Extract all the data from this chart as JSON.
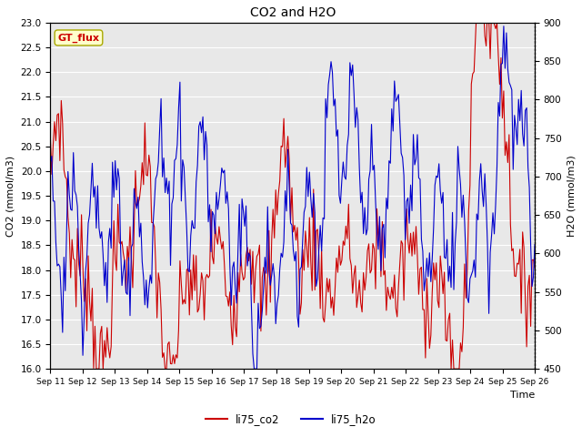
{
  "title": "CO2 and H2O",
  "xlabel": "Time",
  "ylabel_left": "CO2 (mmol/m3)",
  "ylabel_right": "H2O (mmol/m3)",
  "ylim_left": [
    16.0,
    23.0
  ],
  "ylim_right": [
    450,
    900
  ],
  "yticks_left": [
    16.0,
    16.5,
    17.0,
    17.5,
    18.0,
    18.5,
    19.0,
    19.5,
    20.0,
    20.5,
    21.0,
    21.5,
    22.0,
    22.5,
    23.0
  ],
  "yticks_right": [
    450,
    500,
    550,
    600,
    650,
    700,
    750,
    800,
    850,
    900
  ],
  "xtick_labels": [
    "Sep 11",
    "Sep 12",
    "Sep 13",
    "Sep 14",
    "Sep 15",
    "Sep 16",
    "Sep 17",
    "Sep 18",
    "Sep 19",
    "Sep 20",
    "Sep 21",
    "Sep 22",
    "Sep 23",
    "Sep 24",
    "Sep 25",
    "Sep 26"
  ],
  "color_co2": "#cc0000",
  "color_h2o": "#0000cc",
  "legend_label_co2": "li75_co2",
  "legend_label_h2o": "li75_h2o",
  "annotation_text": "GT_flux",
  "annotation_color_text": "#cc0000",
  "annotation_bg_color": "#ffffcc",
  "annotation_border_color": "#aaaa00",
  "bg_color": "#e8e8e8",
  "grid_color": "white",
  "linewidth": 0.8
}
